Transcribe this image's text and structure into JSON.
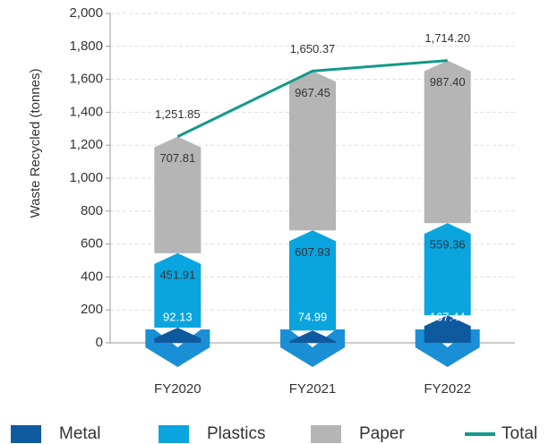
{
  "chart_data": {
    "type": "bar",
    "stacked": true,
    "ylabel": "Waste Recycled (tonnes)",
    "categories": [
      "FY2020",
      "FY2021",
      "FY2022"
    ],
    "series": [
      {
        "name": "Metal",
        "color": "#0f5a9e",
        "values": [
          92.13,
          74.99,
          167.44
        ],
        "value_labels": [
          "92.13",
          "74.99",
          "167.44"
        ]
      },
      {
        "name": "Plastics",
        "color": "#0aa4df",
        "values": [
          451.91,
          607.93,
          559.36
        ],
        "value_labels": [
          "451.91",
          "607.93",
          "559.36"
        ]
      },
      {
        "name": "Paper",
        "color": "#b5b5b5",
        "values": [
          707.81,
          967.45,
          987.4
        ],
        "value_labels": [
          "707.81",
          "967.45",
          "987.40"
        ]
      },
      {
        "name": "Total",
        "type": "line",
        "color": "#14998a",
        "values": [
          1251.85,
          1650.37,
          1714.2
        ],
        "value_labels": [
          "1,251.85",
          "1,650.37",
          "1,714.20"
        ]
      }
    ],
    "ylim": [
      0,
      2000
    ],
    "yticks": [
      0,
      200,
      400,
      600,
      800,
      {
        "value": 1000,
        "label": "1,000"
      },
      {
        "value": 1200,
        "label": "1,200"
      },
      {
        "value": 1400,
        "label": "1,400"
      },
      {
        "value": 1600,
        "label": "1,600"
      },
      {
        "value": 1800,
        "label": "1,800"
      },
      {
        "value": 2000,
        "label": "2,000"
      }
    ],
    "grid": true,
    "legend": "bottom"
  }
}
